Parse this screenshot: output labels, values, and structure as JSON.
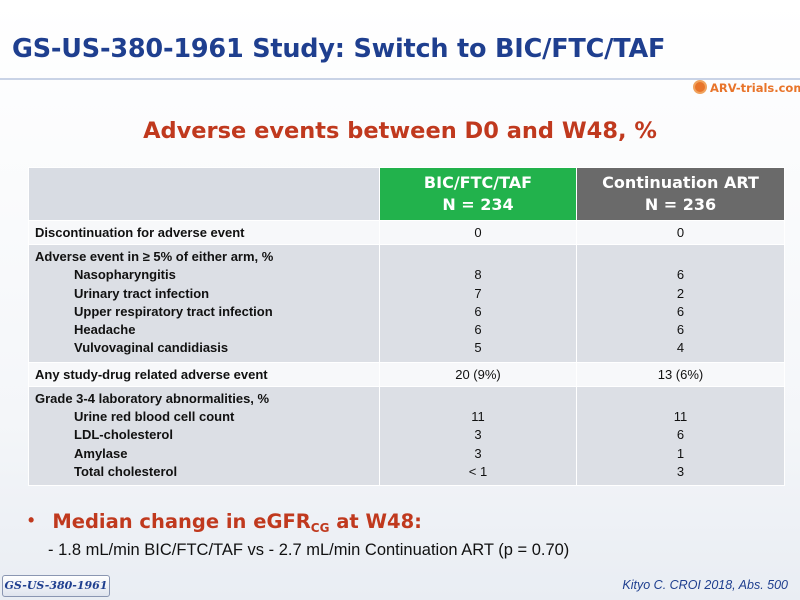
{
  "slide": {
    "title": "GS-US-380-1961 Study: Switch to BIC/FTC/TAF",
    "logo_text": "ARV-trials.com",
    "subtitle": "Adverse events between D0 and W48, %"
  },
  "table": {
    "columns": [
      {
        "name": "BIC/FTC/TAF",
        "n": "N = 234",
        "color": "#22b24c"
      },
      {
        "name": "Continuation ART",
        "n": "N = 236",
        "color": "#6a6a6a"
      }
    ],
    "rows": [
      {
        "label": "Discontinuation for adverse event",
        "bic": "0",
        "cont": "0"
      },
      {
        "label": "Adverse event in ≥ 5% of either arm, %",
        "items": [
          {
            "label": "Nasopharyngitis",
            "bic": "8",
            "cont": "6"
          },
          {
            "label": "Urinary tract infection",
            "bic": "7",
            "cont": "2"
          },
          {
            "label": "Upper respiratory tract infection",
            "bic": "6",
            "cont": "6"
          },
          {
            "label": "Headache",
            "bic": "6",
            "cont": "6"
          },
          {
            "label": "Vulvovaginal candidiasis",
            "bic": "5",
            "cont": "4"
          }
        ]
      },
      {
        "label": "Any study-drug related adverse event",
        "bic": "20 (9%)",
        "cont": "13 (6%)"
      },
      {
        "label": "Grade 3-4 laboratory abnormalities, %",
        "items": [
          {
            "label": "Urine red blood cell count",
            "bic": "11",
            "cont": "11"
          },
          {
            "label": "LDL-cholesterol",
            "bic": "3",
            "cont": "6"
          },
          {
            "label": "Amylase",
            "bic": "3",
            "cont": "1"
          },
          {
            "label": "Total cholesterol",
            "bic": "< 1",
            "cont": "3"
          }
        ]
      }
    ]
  },
  "bullet": {
    "main_prefix": "Median change in eGFR",
    "main_sub": "CG",
    "main_suffix": " at W48:",
    "detail": "- 1.8 mL/min BIC/FTC/TAF vs - 2.7 mL/min Continuation ART (p = 0.70)"
  },
  "footer": {
    "study_tag": "GS-US-380-1961",
    "citation": "Kityo C. CROI 2018, Abs. 500"
  },
  "colors": {
    "title": "#1f3f8f",
    "accent": "#c0391e",
    "bic_header": "#22b24c",
    "continuation_header": "#6a6a6a",
    "logo": "#e8742a"
  }
}
